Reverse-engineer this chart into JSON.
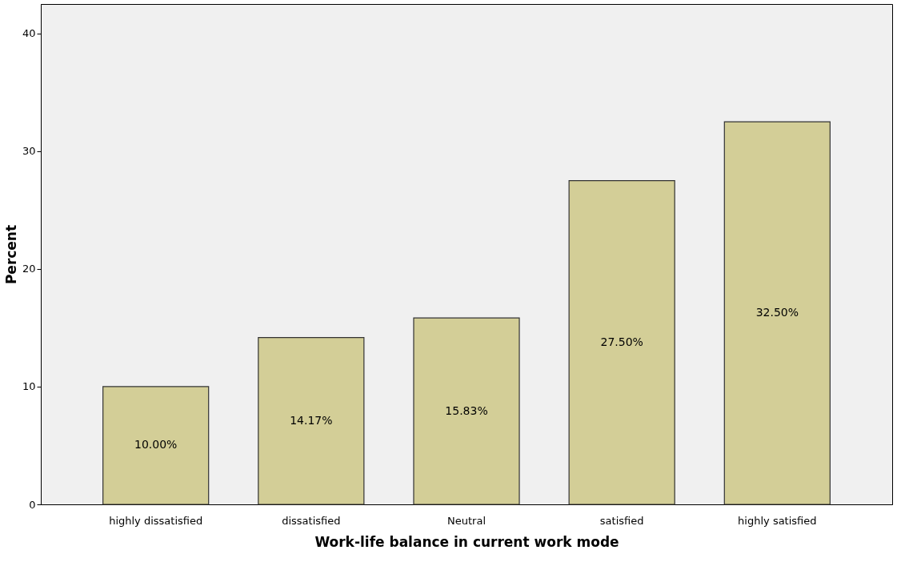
{
  "chart_data": {
    "type": "bar",
    "xlabel": "Work-life balance in current work mode",
    "ylabel": "Percent",
    "categories": [
      "highly dissatisfied",
      "dissatisfied",
      "Neutral",
      "satisfied",
      "highly satisfied"
    ],
    "values": [
      10.0,
      14.17,
      15.83,
      27.5,
      32.5
    ],
    "value_labels": [
      "10.00%",
      "14.17%",
      "15.83%",
      "27.50%",
      "32.50%"
    ],
    "color": "#d3ce97",
    "ylim": [
      0,
      42.5
    ],
    "yticks": [
      0,
      10,
      20,
      30,
      40
    ],
    "grid": false
  }
}
